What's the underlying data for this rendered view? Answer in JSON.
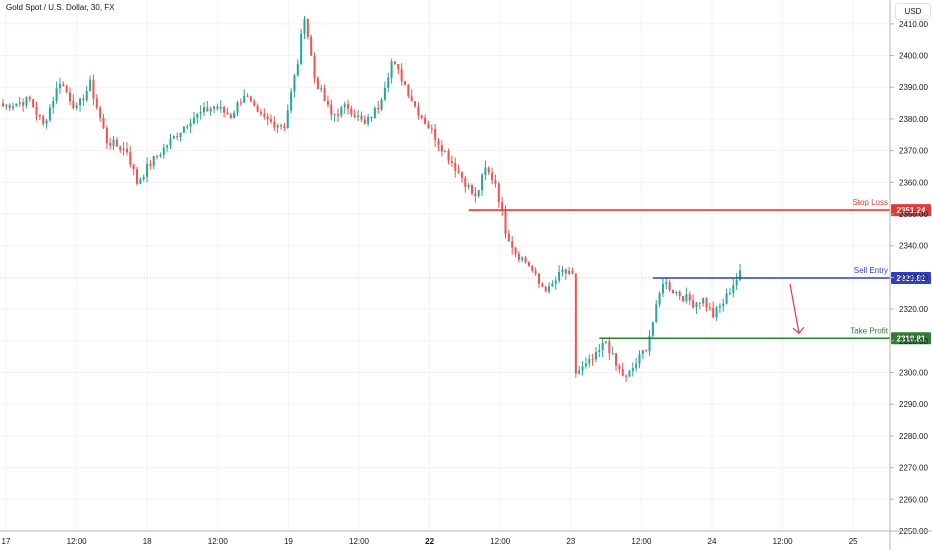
{
  "header": {
    "symbol_title": "Gold Spot / U.S. Dollar, 30, FX",
    "currency": "USD"
  },
  "colors": {
    "up": "#26a69a",
    "down": "#ef5350",
    "stop": "#e53935",
    "entry": "#2f3fc2",
    "target": "#2e7d32",
    "arrow": "#e53950",
    "grid": "#f0f3fa"
  },
  "chart_data": {
    "type": "candlestick",
    "instrument": "Gold Spot / U.S. Dollar",
    "timeframe": "30",
    "source": "FX",
    "y_axis": {
      "ticks": [
        "2250.00",
        "2260.00",
        "2270.00",
        "2280.00",
        "2290.00",
        "2300.00",
        "2310.00",
        "2320.00",
        "2330.00",
        "2340.00",
        "2350.00",
        "2360.00",
        "2370.00",
        "2380.00",
        "2390.00",
        "2400.00",
        "2410.00"
      ],
      "range": [
        2250,
        2415
      ]
    },
    "x_axis": {
      "ticks": [
        {
          "label": "17",
          "bold": false
        },
        {
          "label": "12:00",
          "bold": false
        },
        {
          "label": "18",
          "bold": false
        },
        {
          "label": "12:00",
          "bold": false
        },
        {
          "label": "19",
          "bold": false
        },
        {
          "label": "12:00",
          "bold": false
        },
        {
          "label": "22",
          "bold": true
        },
        {
          "label": "12:00",
          "bold": false
        },
        {
          "label": "23",
          "bold": false
        },
        {
          "label": "12:00",
          "bold": false
        },
        {
          "label": "24",
          "bold": false
        },
        {
          "label": "12:00",
          "bold": false
        },
        {
          "label": "25",
          "bold": false
        }
      ]
    },
    "close_path": [
      {
        "bar": 0,
        "price": 2384
      },
      {
        "bar": 8,
        "price": 2386
      },
      {
        "bar": 12,
        "price": 2378
      },
      {
        "bar": 17,
        "price": 2392
      },
      {
        "bar": 22,
        "price": 2383
      },
      {
        "bar": 26,
        "price": 2391
      },
      {
        "bar": 31,
        "price": 2373
      },
      {
        "bar": 37,
        "price": 2370
      },
      {
        "bar": 40,
        "price": 2360
      },
      {
        "bar": 44,
        "price": 2366
      },
      {
        "bar": 50,
        "price": 2373
      },
      {
        "bar": 56,
        "price": 2380
      },
      {
        "bar": 63,
        "price": 2384
      },
      {
        "bar": 68,
        "price": 2381
      },
      {
        "bar": 72,
        "price": 2388
      },
      {
        "bar": 76,
        "price": 2381
      },
      {
        "bar": 80,
        "price": 2379
      },
      {
        "bar": 84,
        "price": 2378
      },
      {
        "bar": 88,
        "price": 2398
      },
      {
        "bar": 90,
        "price": 2413
      },
      {
        "bar": 93,
        "price": 2393
      },
      {
        "bar": 98,
        "price": 2381
      },
      {
        "bar": 103,
        "price": 2384
      },
      {
        "bar": 108,
        "price": 2378
      },
      {
        "bar": 112,
        "price": 2384
      },
      {
        "bar": 116,
        "price": 2398
      },
      {
        "bar": 119,
        "price": 2393
      },
      {
        "bar": 123,
        "price": 2384
      },
      {
        "bar": 128,
        "price": 2376
      },
      {
        "bar": 133,
        "price": 2368
      },
      {
        "bar": 138,
        "price": 2360
      },
      {
        "bar": 141,
        "price": 2355
      },
      {
        "bar": 144,
        "price": 2364
      },
      {
        "bar": 147,
        "price": 2360
      },
      {
        "bar": 150,
        "price": 2345
      },
      {
        "bar": 153,
        "price": 2338
      },
      {
        "bar": 157,
        "price": 2334
      },
      {
        "bar": 160,
        "price": 2328
      },
      {
        "bar": 163,
        "price": 2326
      },
      {
        "bar": 167,
        "price": 2332
      },
      {
        "bar": 170,
        "price": 2330
      },
      {
        "bar": 171,
        "price": 2300
      },
      {
        "bar": 174,
        "price": 2302
      },
      {
        "bar": 177,
        "price": 2305
      },
      {
        "bar": 180,
        "price": 2310
      },
      {
        "bar": 183,
        "price": 2302
      },
      {
        "bar": 186,
        "price": 2298
      },
      {
        "bar": 189,
        "price": 2303
      },
      {
        "bar": 192,
        "price": 2308
      },
      {
        "bar": 195,
        "price": 2320
      },
      {
        "bar": 197,
        "price": 2329
      },
      {
        "bar": 200,
        "price": 2326
      },
      {
        "bar": 203,
        "price": 2324
      },
      {
        "bar": 206,
        "price": 2322
      },
      {
        "bar": 209,
        "price": 2323
      },
      {
        "bar": 212,
        "price": 2318
      },
      {
        "bar": 215,
        "price": 2322
      },
      {
        "bar": 218,
        "price": 2328
      },
      {
        "bar": 220,
        "price": 2331
      }
    ],
    "bars_total": 221,
    "levels": [
      {
        "label": "Stop Loss",
        "value": 2351.24,
        "price_label": "2351.24",
        "color_key": "stop",
        "start_bar": 139
      },
      {
        "label": "Sell Entry",
        "value": 2329.82,
        "price_label": "2329.82",
        "color_key": "entry",
        "start_bar": 194
      },
      {
        "label": "Take Profit",
        "value": 2310.81,
        "price_label": "2310.81",
        "color_key": "target",
        "start_bar": 178
      }
    ],
    "annotations": [
      {
        "type": "arrow",
        "direction": "down",
        "color_key": "arrow"
      }
    ],
    "grid": true
  }
}
